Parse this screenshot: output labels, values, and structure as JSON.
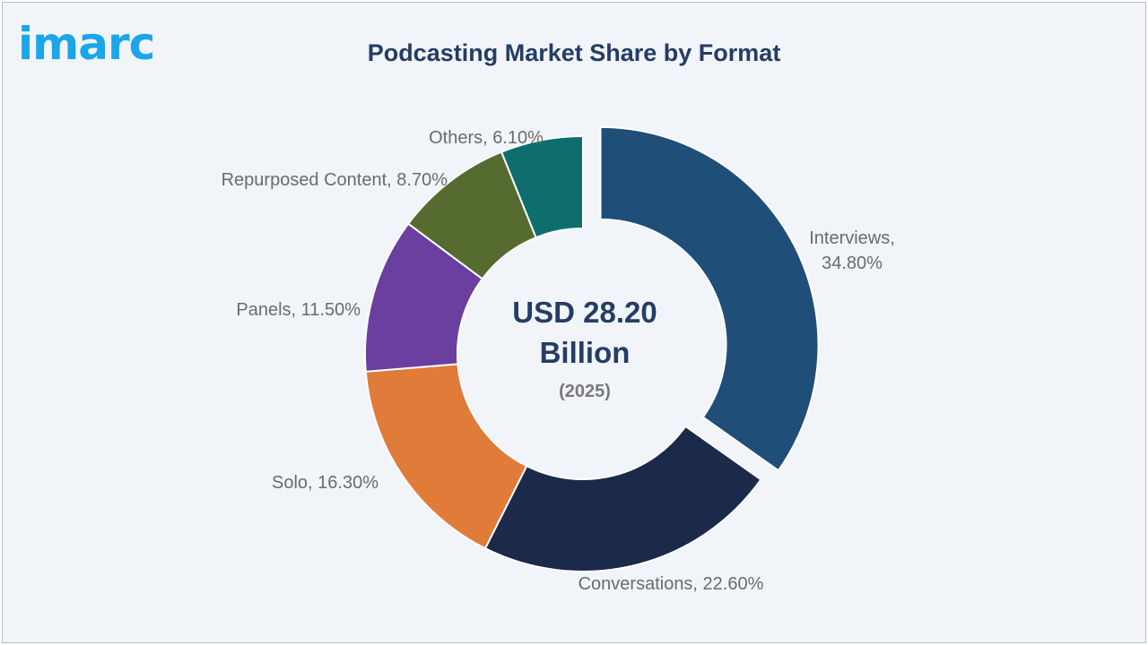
{
  "brand": {
    "logo_text": "imarc",
    "logo_color": "#1aa6e8"
  },
  "chart_data": {
    "type": "pie",
    "title": "Podcasting Market Share by Format",
    "center_text": {
      "line1": "USD 28.20",
      "line2": "Billion",
      "line3": "(2025)"
    },
    "unit": "%",
    "slices": [
      {
        "label": "Interviews",
        "value": 34.8,
        "display": "34.80%",
        "color": "#1f4e79",
        "exploded": true
      },
      {
        "label": "Conversations",
        "value": 22.6,
        "display": "22.60%",
        "color": "#1b2a4a",
        "exploded": false
      },
      {
        "label": "Solo",
        "value": 16.3,
        "display": "16.30%",
        "color": "#e07b39",
        "exploded": false
      },
      {
        "label": "Panels",
        "value": 11.5,
        "display": "11.50%",
        "color": "#6a3fa0",
        "exploded": false
      },
      {
        "label": "Repurposed Content",
        "value": 8.7,
        "display": "8.70%",
        "color": "#556b2f",
        "exploded": false
      },
      {
        "label": "Others",
        "value": 6.1,
        "display": "6.10%",
        "color": "#0e6e6e",
        "exploded": false
      }
    ]
  }
}
